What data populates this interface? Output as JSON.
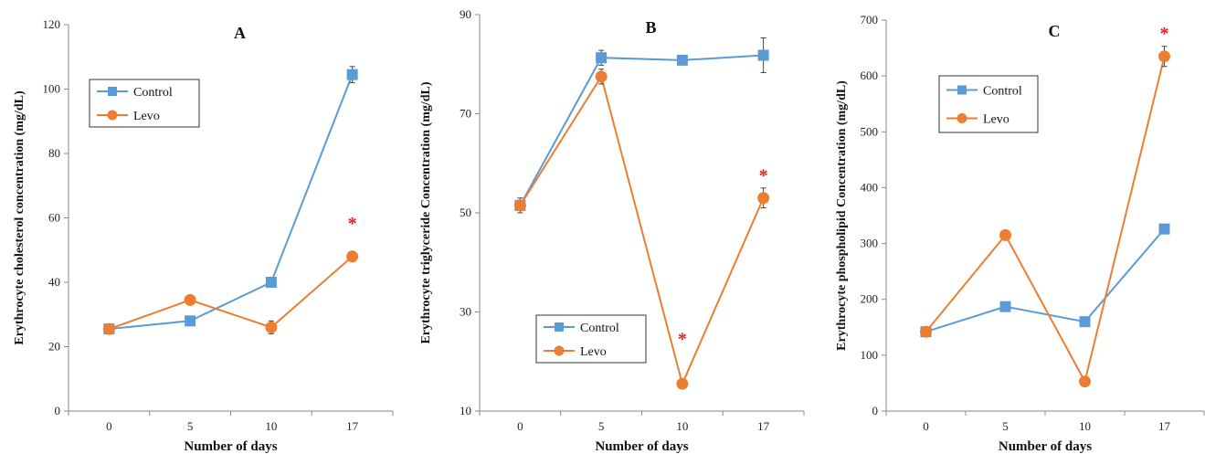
{
  "star_color": "#e02020",
  "chart_data": [
    {
      "type": "line",
      "title": "A",
      "xlabel": "Number of days",
      "ylabel": "Erythrocyte cholesterol concentration (mg/dL)",
      "categories": [
        "0",
        "5",
        "10",
        "17"
      ],
      "ylim": [
        0,
        120
      ],
      "yticks": [
        0,
        20,
        40,
        60,
        80,
        100,
        120
      ],
      "legend_position": "upper-left",
      "series": [
        {
          "name": "Control",
          "color": "#5b9bd5",
          "marker": "square",
          "values": [
            25.5,
            28,
            40,
            104.5
          ],
          "errors": [
            0,
            0,
            0,
            2.5
          ]
        },
        {
          "name": "Levo",
          "color": "#ed7d31",
          "marker": "circle",
          "values": [
            25.5,
            34.5,
            26,
            48
          ],
          "errors": [
            0,
            0,
            2,
            0
          ]
        }
      ],
      "annotations": [
        {
          "text": "*",
          "category": "17",
          "y": 59
        }
      ]
    },
    {
      "type": "line",
      "title": "B",
      "xlabel": "Number of days",
      "ylabel": "Erythrocyte triglyceride Concentration (mg/dL)",
      "categories": [
        "0",
        "5",
        "10",
        "17"
      ],
      "ylim": [
        10,
        90
      ],
      "yticks": [
        10,
        30,
        50,
        70,
        90
      ],
      "legend_position": "lower-left",
      "series": [
        {
          "name": "Control",
          "color": "#5b9bd5",
          "marker": "square",
          "values": [
            51.5,
            81.3,
            80.8,
            81.8
          ],
          "errors": [
            1,
            1.5,
            0.5,
            3.5
          ]
        },
        {
          "name": "Levo",
          "color": "#ed7d31",
          "marker": "circle",
          "values": [
            51.5,
            77.5,
            15.5,
            53
          ],
          "errors": [
            1.5,
            1.5,
            0,
            2
          ]
        }
      ],
      "annotations": [
        {
          "text": "*",
          "category": "10",
          "y": 25
        },
        {
          "text": "*",
          "category": "17",
          "y": 58
        }
      ]
    },
    {
      "type": "line",
      "title": "C",
      "xlabel": "Number of days",
      "ylabel": "Erythrocyte phospholipid Concentration (mg/dL)",
      "categories": [
        "0",
        "5",
        "10",
        "17"
      ],
      "ylim": [
        0,
        700
      ],
      "yticks": [
        0,
        100,
        200,
        300,
        400,
        500,
        600,
        700
      ],
      "legend_position": "upper-left",
      "series": [
        {
          "name": "Control",
          "color": "#5b9bd5",
          "marker": "square",
          "values": [
            142,
            187,
            160,
            326
          ],
          "errors": [
            0,
            5,
            0,
            5
          ]
        },
        {
          "name": "Levo",
          "color": "#ed7d31",
          "marker": "circle",
          "values": [
            142,
            315,
            53,
            635
          ],
          "errors": [
            0,
            5,
            0,
            18
          ]
        }
      ],
      "annotations": [
        {
          "text": "*",
          "category": "17",
          "y": 680
        }
      ]
    }
  ]
}
